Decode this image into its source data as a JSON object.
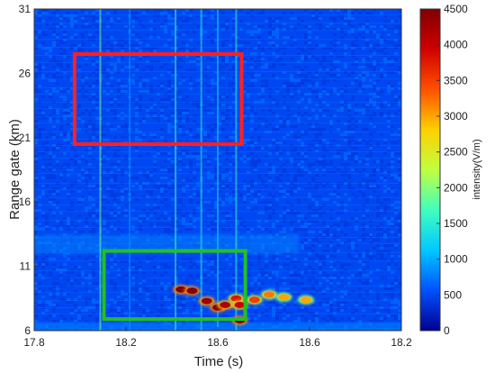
{
  "chart_data": {
    "type": "heatmap",
    "title": "",
    "xlabel": "Time (s)",
    "ylabel": "Range gate (km)",
    "xlim": [
      17.8,
      18.2
    ],
    "ylim": [
      6,
      31
    ],
    "x_ticks": [
      "17.8",
      "18.2",
      "18.6",
      "18.6",
      "18.2"
    ],
    "y_ticks": [
      "6",
      "11",
      "16",
      "21",
      "26",
      "31"
    ],
    "colorbar": {
      "label": "intensity(V/m)",
      "min": 0,
      "max": 4500,
      "ticks": [
        "0",
        "500",
        "1000",
        "1500",
        "2000",
        "2500",
        "3000",
        "3500",
        "4000",
        "4500"
      ],
      "colormap": [
        "#00008f",
        "#0050ff",
        "#00c8ff",
        "#40ffbf",
        "#c0ff40",
        "#ffd000",
        "#ff5000",
        "#d00000",
        "#800000"
      ]
    },
    "background_intensity": 500,
    "regions_of_interest": [
      {
        "color": "#ff2020",
        "x_range": [
          0.11,
          0.565
        ],
        "y_range": [
          20.5,
          27.5
        ]
      },
      {
        "color": "#22c022",
        "x_range": [
          0.19,
          0.575
        ],
        "y_range": [
          6.9,
          12.2
        ]
      }
    ],
    "vertical_streaks": [
      {
        "x": 0.18,
        "intensity": 1900
      },
      {
        "x": 0.26,
        "intensity": 900
      },
      {
        "x": 0.385,
        "intensity": 1700
      },
      {
        "x": 0.455,
        "intensity": 1500
      },
      {
        "x": 0.5,
        "intensity": 1300
      },
      {
        "x": 0.55,
        "intensity": 1600
      }
    ],
    "hotspots": [
      {
        "x": 0.4,
        "y": 9.2,
        "intensity": 4500
      },
      {
        "x": 0.43,
        "y": 9.1,
        "intensity": 4500
      },
      {
        "x": 0.47,
        "y": 8.3,
        "intensity": 4300
      },
      {
        "x": 0.5,
        "y": 7.8,
        "intensity": 4500
      },
      {
        "x": 0.52,
        "y": 8.0,
        "intensity": 4200
      },
      {
        "x": 0.55,
        "y": 8.5,
        "intensity": 3800
      },
      {
        "x": 0.56,
        "y": 8.0,
        "intensity": 4000
      },
      {
        "x": 0.6,
        "y": 8.4,
        "intensity": 3500
      },
      {
        "x": 0.64,
        "y": 8.8,
        "intensity": 3200
      },
      {
        "x": 0.68,
        "y": 8.6,
        "intensity": 3000
      },
      {
        "x": 0.74,
        "y": 8.4,
        "intensity": 3000
      },
      {
        "x": 0.56,
        "y": 6.8,
        "intensity": 4500
      }
    ]
  }
}
